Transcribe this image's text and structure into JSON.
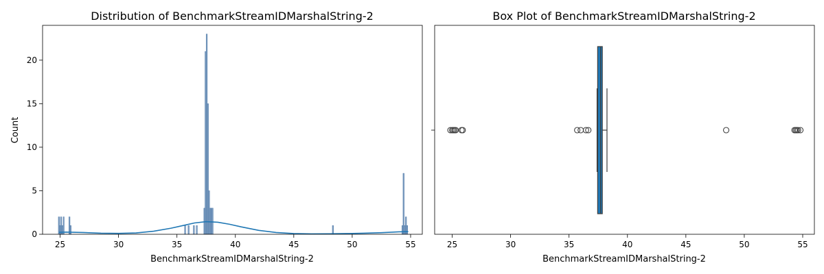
{
  "chart_data": [
    {
      "type": "histogram",
      "title": "Distribution of BenchmarkStreamIDMarshalString-2",
      "xlabel": "BenchmarkStreamIDMarshalString-2",
      "ylabel": "Count",
      "xlim": [
        23.5,
        56.0
      ],
      "ylim": [
        0,
        24
      ],
      "x_ticks": [
        25,
        30,
        35,
        40,
        45,
        50,
        55
      ],
      "y_ticks": [
        0,
        5,
        10,
        15,
        20
      ],
      "colors": {
        "bar": "#4c78a8",
        "kde": "#1f77b4"
      },
      "bins": [
        {
          "x": 24.9,
          "count": 2
        },
        {
          "x": 25.0,
          "count": 1
        },
        {
          "x": 25.08,
          "count": 2
        },
        {
          "x": 25.2,
          "count": 1
        },
        {
          "x": 25.3,
          "count": 2
        },
        {
          "x": 25.8,
          "count": 2
        },
        {
          "x": 25.9,
          "count": 1
        },
        {
          "x": 35.7,
          "count": 1
        },
        {
          "x": 36.0,
          "count": 1
        },
        {
          "x": 36.45,
          "count": 1
        },
        {
          "x": 36.7,
          "count": 1
        },
        {
          "x": 37.35,
          "count": 3
        },
        {
          "x": 37.45,
          "count": 21
        },
        {
          "x": 37.55,
          "count": 23
        },
        {
          "x": 37.65,
          "count": 15
        },
        {
          "x": 37.75,
          "count": 5
        },
        {
          "x": 37.85,
          "count": 3
        },
        {
          "x": 37.95,
          "count": 3
        },
        {
          "x": 38.05,
          "count": 3
        },
        {
          "x": 48.35,
          "count": 1
        },
        {
          "x": 54.3,
          "count": 1
        },
        {
          "x": 54.4,
          "count": 7
        },
        {
          "x": 54.5,
          "count": 1
        },
        {
          "x": 54.6,
          "count": 2
        },
        {
          "x": 54.7,
          "count": 1
        }
      ],
      "bin_width": 0.1,
      "kde": {
        "x": [
          24.9,
          25.5,
          27,
          28.5,
          30,
          31.5,
          33,
          34.5,
          35.5,
          36.5,
          37.5,
          38.5,
          39.5,
          40.5,
          42,
          43.5,
          45,
          46.5,
          48,
          49.5,
          51,
          52.5,
          54,
          54.8
        ],
        "y": [
          0.22,
          0.25,
          0.2,
          0.12,
          0.1,
          0.15,
          0.35,
          0.7,
          1.0,
          1.3,
          1.45,
          1.38,
          1.15,
          0.85,
          0.45,
          0.2,
          0.08,
          0.05,
          0.06,
          0.08,
          0.12,
          0.18,
          0.28,
          0.3
        ]
      }
    },
    {
      "type": "box",
      "title": "Box Plot of BenchmarkStreamIDMarshalString-2",
      "xlabel": "BenchmarkStreamIDMarshalString-2",
      "xlim": [
        23.5,
        56.0
      ],
      "x_ticks": [
        25,
        30,
        35,
        40,
        45,
        50,
        55
      ],
      "colors": {
        "box": "#1f77b4",
        "line": "#3d3d3d"
      },
      "q1": 37.45,
      "median": 37.7,
      "q3": 37.85,
      "whisker_low": 37.4,
      "whisker_high": 38.25,
      "outliers": [
        24.85,
        25.0,
        25.1,
        25.2,
        25.3,
        25.8,
        25.9,
        35.7,
        36.0,
        36.45,
        36.65,
        48.45,
        54.3,
        54.4,
        54.5,
        54.6,
        54.8
      ]
    }
  ]
}
